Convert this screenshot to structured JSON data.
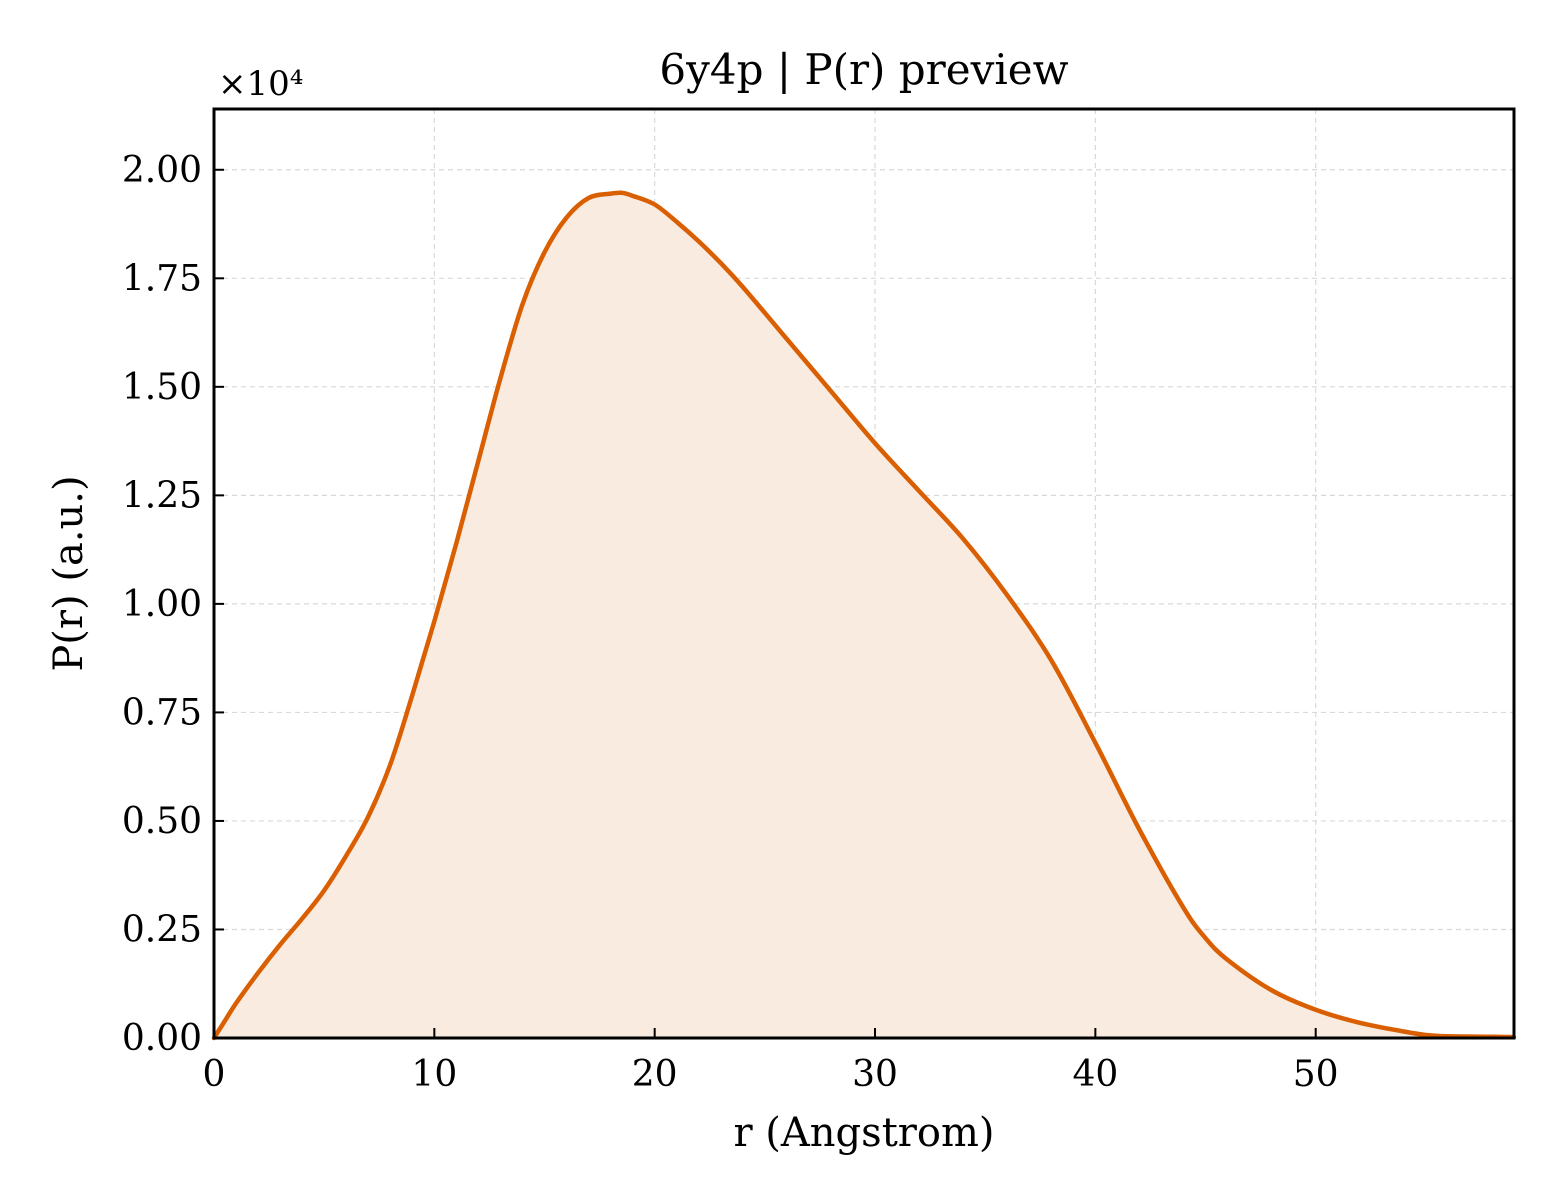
{
  "chart_data": {
    "type": "line",
    "title": "6y4p | P(r) preview",
    "xlabel": "r (Angstrom)",
    "ylabel": "P(r) (a.u.)",
    "y_multiplier_label": "×10⁴",
    "xlim": [
      0,
      59
    ],
    "ylim": [
      0,
      2.14
    ],
    "xticks": [
      0,
      10,
      20,
      30,
      40,
      50
    ],
    "xtick_labels": [
      "0",
      "10",
      "20",
      "30",
      "40",
      "50"
    ],
    "yticks": [
      0,
      0.25,
      0.5,
      0.75,
      1.0,
      1.25,
      1.5,
      1.75,
      2.0
    ],
    "ytick_labels": [
      "0.00",
      "0.25",
      "0.50",
      "0.75",
      "1.00",
      "1.25",
      "1.50",
      "1.75",
      "2.00"
    ],
    "grid": true,
    "line_color": "#d95f02",
    "fill_color": "#f9ebe0",
    "series": [
      {
        "x": [
          0,
          0.5,
          1,
          2,
          3,
          4,
          5,
          6,
          7,
          8,
          9,
          10,
          11,
          12,
          13,
          14,
          15,
          16,
          17,
          18,
          18.5,
          19,
          20,
          21,
          22,
          23,
          24,
          26,
          28,
          30,
          32,
          34,
          36,
          38,
          40,
          42,
          44,
          45,
          46,
          48,
          50,
          52,
          54,
          55,
          56,
          58,
          59
        ],
        "y": [
          0,
          0.04,
          0.08,
          0.15,
          0.215,
          0.275,
          0.34,
          0.42,
          0.51,
          0.63,
          0.79,
          0.96,
          1.14,
          1.33,
          1.52,
          1.69,
          1.81,
          1.89,
          1.935,
          1.945,
          1.947,
          1.94,
          1.92,
          1.88,
          1.835,
          1.785,
          1.73,
          1.61,
          1.49,
          1.37,
          1.26,
          1.15,
          1.02,
          0.87,
          0.68,
          0.48,
          0.3,
          0.23,
          0.18,
          0.11,
          0.065,
          0.035,
          0.015,
          0.007,
          0.004,
          0.003,
          0.002
        ]
      }
    ]
  }
}
